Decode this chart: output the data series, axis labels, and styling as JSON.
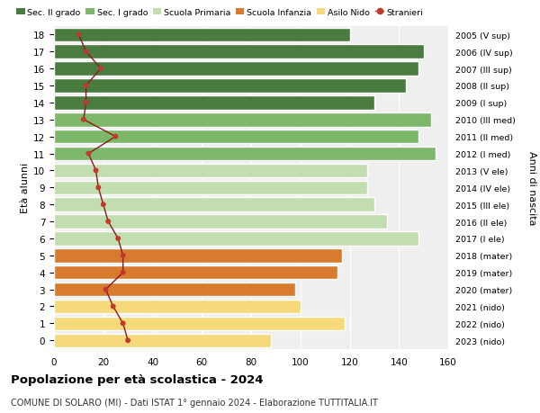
{
  "ages": [
    0,
    1,
    2,
    3,
    4,
    5,
    6,
    7,
    8,
    9,
    10,
    11,
    12,
    13,
    14,
    15,
    16,
    17,
    18
  ],
  "right_labels": [
    "2023 (nido)",
    "2022 (nido)",
    "2021 (nido)",
    "2020 (mater)",
    "2019 (mater)",
    "2018 (mater)",
    "2017 (I ele)",
    "2016 (II ele)",
    "2015 (III ele)",
    "2014 (IV ele)",
    "2013 (V ele)",
    "2012 (I med)",
    "2011 (II med)",
    "2010 (III med)",
    "2009 (I sup)",
    "2008 (II sup)",
    "2007 (III sup)",
    "2006 (IV sup)",
    "2005 (V sup)"
  ],
  "bar_values": [
    88,
    118,
    100,
    98,
    115,
    117,
    148,
    135,
    130,
    127,
    127,
    155,
    148,
    153,
    130,
    143,
    148,
    150,
    120
  ],
  "bar_colors": [
    "#f5d97a",
    "#f5d97a",
    "#f5d97a",
    "#d97b2e",
    "#d97b2e",
    "#d97b2e",
    "#c2deb0",
    "#c2deb0",
    "#c2deb0",
    "#c2deb0",
    "#c2deb0",
    "#7db86a",
    "#7db86a",
    "#7db86a",
    "#4a7c40",
    "#4a7c40",
    "#4a7c40",
    "#4a7c40",
    "#4a7c40"
  ],
  "stranieri_values": [
    30,
    28,
    24,
    21,
    28,
    28,
    26,
    22,
    20,
    18,
    17,
    14,
    25,
    12,
    13,
    13,
    19,
    13,
    10
  ],
  "legend_labels": [
    "Sec. II grado",
    "Sec. I grado",
    "Scuola Primaria",
    "Scuola Infanzia",
    "Asilo Nido",
    "Stranieri"
  ],
  "legend_colors": [
    "#4a7c40",
    "#7db86a",
    "#c2deb0",
    "#d97b2e",
    "#f5d97a",
    "#c0392b"
  ],
  "ylabel_left": "Età alunni",
  "ylabel_right": "Anni di nascita",
  "title": "Popolazione per età scolastica - 2024",
  "subtitle": "COMUNE DI SOLARO (MI) - Dati ISTAT 1° gennaio 2024 - Elaborazione TUTTITALIA.IT",
  "xlim": [
    0,
    160
  ],
  "xticks": [
    0,
    20,
    40,
    60,
    80,
    100,
    120,
    140,
    160
  ],
  "bg_color": "#ffffff",
  "bar_bg_color": "#efefef"
}
